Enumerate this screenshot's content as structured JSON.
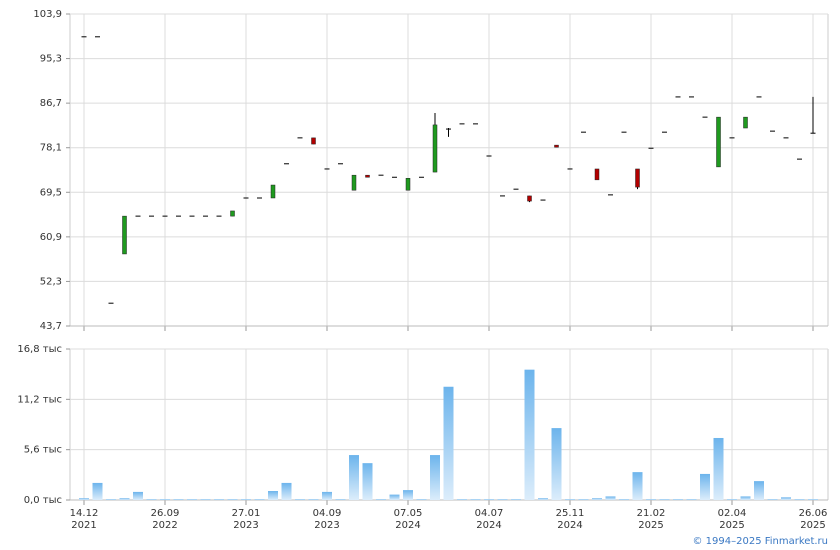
{
  "chart_data": [
    {
      "type": "candlestick",
      "up_color": "#1f9a1f",
      "down_color": "#b30000",
      "flat_color": "#000000",
      "open": [
        99.5,
        99.5,
        48.1,
        57.6,
        64.9,
        64.9,
        64.9,
        64.9,
        64.9,
        64.9,
        64.9,
        64.9,
        68.4,
        68.4,
        68.4,
        75.0,
        80.0,
        80.0,
        74.0,
        75.0,
        69.9,
        72.8,
        72.8,
        72.4,
        69.9,
        72.4,
        73.4,
        81.7,
        82.7,
        82.7,
        76.5,
        68.8,
        70.1,
        68.8,
        68.0,
        78.6,
        74.0,
        81.1,
        74.0,
        69.0,
        81.1,
        74.0,
        78.0,
        81.1,
        87.9,
        87.9,
        84.0,
        74.4,
        80.0,
        81.9,
        87.9,
        81.3,
        80.0,
        75.9,
        80.9
      ],
      "high": [
        99.5,
        99.5,
        48.1,
        64.9,
        64.9,
        64.9,
        64.9,
        64.9,
        64.9,
        64.9,
        64.9,
        65.9,
        68.4,
        68.4,
        70.9,
        75.0,
        80.0,
        80.0,
        74.0,
        75.0,
        72.8,
        72.8,
        72.8,
        72.4,
        72.2,
        72.4,
        84.8,
        81.9,
        82.7,
        82.7,
        76.5,
        68.8,
        70.1,
        68.8,
        68.0,
        78.6,
        74.0,
        81.1,
        74.0,
        69.0,
        81.1,
        74.0,
        78.0,
        81.1,
        87.9,
        87.9,
        84.0,
        84.0,
        80.0,
        84.0,
        87.9,
        81.3,
        80.0,
        75.9,
        87.9
      ],
      "low": [
        99.5,
        99.5,
        48.1,
        57.6,
        64.9,
        64.9,
        64.9,
        64.9,
        64.9,
        64.9,
        64.9,
        64.9,
        68.4,
        68.4,
        68.4,
        75.0,
        80.0,
        78.8,
        74.0,
        75.0,
        69.9,
        72.4,
        72.8,
        72.4,
        69.9,
        72.4,
        73.4,
        80.2,
        82.7,
        82.7,
        76.5,
        68.8,
        70.1,
        67.6,
        68.0,
        78.2,
        74.0,
        81.1,
        71.9,
        69.0,
        81.1,
        70.1,
        78.0,
        81.1,
        87.9,
        87.9,
        84.0,
        74.4,
        80.0,
        81.9,
        87.9,
        81.3,
        80.0,
        75.9,
        80.9
      ],
      "close": [
        99.5,
        99.5,
        48.1,
        64.9,
        64.9,
        64.9,
        64.9,
        64.9,
        64.9,
        64.9,
        64.9,
        65.9,
        68.4,
        68.4,
        70.9,
        75.0,
        80.0,
        78.8,
        74.0,
        75.0,
        72.8,
        72.4,
        72.8,
        72.4,
        72.2,
        72.4,
        82.5,
        81.7,
        82.7,
        82.7,
        76.5,
        68.8,
        70.1,
        67.8,
        68.0,
        78.2,
        74.0,
        81.1,
        71.9,
        69.0,
        81.1,
        70.5,
        78.0,
        81.1,
        87.9,
        87.9,
        84.0,
        84.0,
        80.0,
        84.0,
        87.9,
        81.3,
        80.0,
        75.9,
        80.9
      ],
      "ylim": [
        43.7,
        103.9
      ],
      "yticks": [
        {
          "value": 43.7,
          "label": "43,7"
        },
        {
          "value": 52.3,
          "label": "52,3"
        },
        {
          "value": 60.9,
          "label": "60,9"
        },
        {
          "value": 69.5,
          "label": "69,5"
        },
        {
          "value": 78.1,
          "label": "78,1"
        },
        {
          "value": 86.7,
          "label": "86,7"
        },
        {
          "value": 95.3,
          "label": "95,3"
        },
        {
          "value": 103.9,
          "label": "103,9"
        }
      ],
      "grid": true
    },
    {
      "type": "bar",
      "color": "#6cb4ec",
      "categories": [
        "14.12",
        null,
        null,
        null,
        null,
        null,
        "26.09",
        null,
        null,
        null,
        null,
        null,
        "27.01",
        null,
        null,
        null,
        null,
        null,
        "04.09",
        null,
        null,
        null,
        null,
        null,
        "07.05",
        null,
        null,
        null,
        null,
        null,
        "04.07",
        null,
        null,
        null,
        null,
        null,
        "25.11",
        null,
        null,
        null,
        null,
        null,
        "21.02",
        null,
        null,
        null,
        null,
        null,
        "02.04",
        null,
        null,
        null,
        null,
        null,
        "26.06"
      ],
      "years": [
        "2021",
        null,
        null,
        null,
        null,
        null,
        "2022",
        null,
        null,
        null,
        null,
        null,
        "2023",
        null,
        null,
        null,
        null,
        null,
        "2023",
        null,
        null,
        null,
        null,
        null,
        "2024",
        null,
        null,
        null,
        null,
        null,
        "2024",
        null,
        null,
        null,
        null,
        null,
        "2024",
        null,
        null,
        null,
        null,
        null,
        "2025",
        null,
        null,
        null,
        null,
        null,
        "2025",
        null,
        null,
        null,
        null,
        null,
        "2025"
      ],
      "values": [
        0.2,
        1.9,
        0.1,
        0.2,
        0.9,
        0.1,
        0.1,
        0.1,
        0.1,
        0.1,
        0.1,
        0.1,
        0.1,
        0.1,
        1.0,
        1.9,
        0.1,
        0.1,
        0.9,
        0.1,
        5.0,
        4.1,
        0.1,
        0.6,
        1.1,
        0.1,
        5.0,
        12.6,
        0.1,
        0.1,
        0.1,
        0.1,
        0.1,
        14.5,
        0.2,
        8.0,
        0.1,
        0.1,
        0.2,
        0.4,
        0.1,
        3.1,
        0.1,
        0.1,
        0.1,
        0.1,
        2.9,
        6.9,
        0.1,
        0.4,
        2.1,
        0.1,
        0.3,
        0.1,
        0.1
      ],
      "ylim": [
        0,
        16.8
      ],
      "yticks": [
        {
          "value": 0,
          "label": "0,0 тыс"
        },
        {
          "value": 5.6,
          "label": "5,6 тыс"
        },
        {
          "value": 11.2,
          "label": "11,2 тыс"
        },
        {
          "value": 16.8,
          "label": "16,8 тыс"
        }
      ],
      "grid": true
    }
  ],
  "credit": "© 1994–2025 Finmarket.ru"
}
